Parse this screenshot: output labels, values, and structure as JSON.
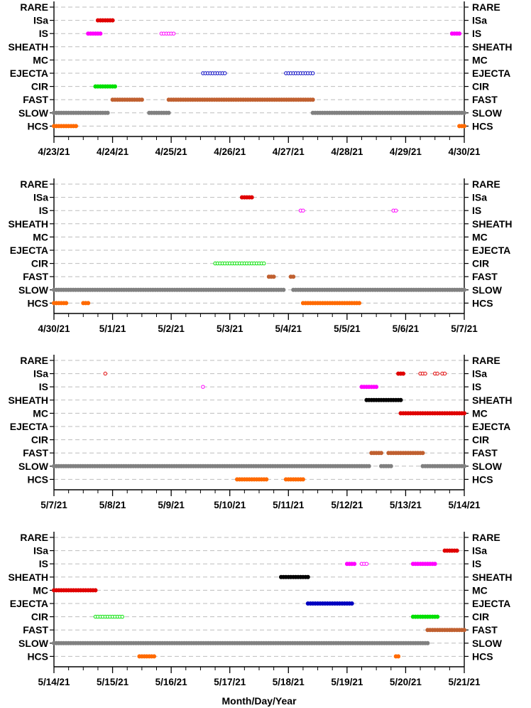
{
  "chart_data": {
    "type": "scatter",
    "xlabel": "Month/Day/Year",
    "categories": [
      "RARE",
      "ISa",
      "IS",
      "SHEATH",
      "MC",
      "EJECTA",
      "CIR",
      "FAST",
      "SLOW",
      "HCS"
    ],
    "colors": {
      "ISa": "#e00000",
      "IS": "#ff00ff",
      "SHEATH": "#000000",
      "MC": "#e00000",
      "EJECTA": "#0000c0",
      "CIR": "#00e000",
      "FAST": "#c06030",
      "SLOW": "#808080",
      "HCS": "#ff6a00"
    },
    "grid": "dashed horizontal lines at each category",
    "panels": [
      {
        "xlim": [
          "2021-04-23",
          "2021-04-30"
        ],
        "ticks": [
          "4/23/21",
          "4/24/21",
          "4/25/21",
          "4/26/21",
          "4/27/21",
          "4/28/21",
          "4/29/21",
          "4/30/21"
        ],
        "segments": [
          {
            "cat": "ISa",
            "from": "2021-04-23 18:00",
            "to": "2021-04-24 00:00",
            "style": "filled"
          },
          {
            "cat": "IS",
            "from": "2021-04-23 14:00",
            "to": "2021-04-23 19:00",
            "style": "filled"
          },
          {
            "cat": "IS",
            "from": "2021-04-24 20:00",
            "to": "2021-04-25 01:00",
            "style": "open"
          },
          {
            "cat": "IS",
            "from": "2021-04-29 19:00",
            "to": "2021-04-29 22:00",
            "style": "filled"
          },
          {
            "cat": "EJECTA",
            "from": "2021-04-25 13:00",
            "to": "2021-04-25 22:00",
            "style": "open"
          },
          {
            "cat": "EJECTA",
            "from": "2021-04-26 23:00",
            "to": "2021-04-27 10:00",
            "style": "open"
          },
          {
            "cat": "CIR",
            "from": "2021-04-23 17:00",
            "to": "2021-04-24 01:00",
            "style": "filled"
          },
          {
            "cat": "FAST",
            "from": "2021-04-24 00:00",
            "to": "2021-04-24 12:00",
            "style": "filled"
          },
          {
            "cat": "FAST",
            "from": "2021-04-24 23:00",
            "to": "2021-04-27 10:00",
            "style": "filled"
          },
          {
            "cat": "SLOW",
            "from": "2021-04-23 00:00",
            "to": "2021-04-23 22:00",
            "style": "filled"
          },
          {
            "cat": "SLOW",
            "from": "2021-04-24 15:00",
            "to": "2021-04-24 23:00",
            "style": "filled"
          },
          {
            "cat": "SLOW",
            "from": "2021-04-27 10:00",
            "to": "2021-04-30 00:00",
            "style": "filled"
          },
          {
            "cat": "HCS",
            "from": "2021-04-23 00:00",
            "to": "2021-04-23 09:00",
            "style": "filled"
          },
          {
            "cat": "HCS",
            "from": "2021-04-29 22:00",
            "to": "2021-04-30 00:00",
            "style": "filled"
          }
        ]
      },
      {
        "xlim": [
          "2021-04-30",
          "2021-05-07"
        ],
        "ticks": [
          "4/30/21",
          "5/1/21",
          "5/2/21",
          "5/3/21",
          "5/4/21",
          "5/5/21",
          "5/6/21",
          "5/7/21"
        ],
        "segments": [
          {
            "cat": "ISa",
            "from": "2021-05-03 05:00",
            "to": "2021-05-03 09:00",
            "style": "filled"
          },
          {
            "cat": "IS",
            "from": "2021-05-04 05:00",
            "to": "2021-05-04 06:00",
            "style": "open"
          },
          {
            "cat": "IS",
            "from": "2021-05-05 19:00",
            "to": "2021-05-05 20:00",
            "style": "open"
          },
          {
            "cat": "CIR",
            "from": "2021-05-02 18:00",
            "to": "2021-05-03 14:00",
            "style": "open"
          },
          {
            "cat": "FAST",
            "from": "2021-05-03 16:00",
            "to": "2021-05-03 18:00",
            "style": "filled"
          },
          {
            "cat": "FAST",
            "from": "2021-05-04 01:00",
            "to": "2021-05-04 02:00",
            "style": "filled"
          },
          {
            "cat": "SLOW",
            "from": "2021-04-30 00:00",
            "to": "2021-05-03 14:00",
            "style": "filled"
          },
          {
            "cat": "SLOW",
            "from": "2021-05-03 15:00",
            "to": "2021-05-03 22:00",
            "style": "filled"
          },
          {
            "cat": "SLOW",
            "from": "2021-05-04 02:00",
            "to": "2021-05-07 00:00",
            "style": "filled"
          },
          {
            "cat": "HCS",
            "from": "2021-04-30 00:00",
            "to": "2021-04-30 05:00",
            "style": "filled"
          },
          {
            "cat": "HCS",
            "from": "2021-04-30 12:00",
            "to": "2021-04-30 14:00",
            "style": "filled"
          },
          {
            "cat": "HCS",
            "from": "2021-05-04 06:00",
            "to": "2021-05-05 05:00",
            "style": "filled"
          }
        ]
      },
      {
        "xlim": [
          "2021-05-07",
          "2021-05-14"
        ],
        "ticks": [
          "5/7/21",
          "5/8/21",
          "5/9/21",
          "5/10/21",
          "5/11/21",
          "5/12/21",
          "5/13/21",
          "5/14/21"
        ],
        "segments": [
          {
            "cat": "ISa",
            "from": "2021-05-07 21:00",
            "to": "2021-05-07 21:00",
            "style": "open"
          },
          {
            "cat": "ISa",
            "from": "2021-05-12 21:00",
            "to": "2021-05-12 23:00",
            "style": "filled"
          },
          {
            "cat": "ISa",
            "from": "2021-05-13 06:00",
            "to": "2021-05-13 08:00",
            "style": "open"
          },
          {
            "cat": "ISa",
            "from": "2021-05-13 12:00",
            "to": "2021-05-13 13:00",
            "style": "open"
          },
          {
            "cat": "ISa",
            "from": "2021-05-13 15:00",
            "to": "2021-05-13 16:00",
            "style": "open"
          },
          {
            "cat": "IS",
            "from": "2021-05-09 13:00",
            "to": "2021-05-09 13:00",
            "style": "open"
          },
          {
            "cat": "IS",
            "from": "2021-05-12 06:00",
            "to": "2021-05-12 12:00",
            "style": "filled"
          },
          {
            "cat": "SHEATH",
            "from": "2021-05-12 08:00",
            "to": "2021-05-12 22:00",
            "style": "filled"
          },
          {
            "cat": "MC",
            "from": "2021-05-12 22:00",
            "to": "2021-05-14 00:00",
            "style": "filled"
          },
          {
            "cat": "FAST",
            "from": "2021-05-12 10:00",
            "to": "2021-05-12 14:00",
            "style": "filled"
          },
          {
            "cat": "FAST",
            "from": "2021-05-12 17:00",
            "to": "2021-05-13 07:00",
            "style": "filled"
          },
          {
            "cat": "SLOW",
            "from": "2021-05-07 00:00",
            "to": "2021-05-12 09:00",
            "style": "filled"
          },
          {
            "cat": "SLOW",
            "from": "2021-05-12 14:00",
            "to": "2021-05-12 18:00",
            "style": "filled"
          },
          {
            "cat": "SLOW",
            "from": "2021-05-13 07:00",
            "to": "2021-05-14 00:00",
            "style": "filled"
          },
          {
            "cat": "HCS",
            "from": "2021-05-10 03:00",
            "to": "2021-05-10 15:00",
            "style": "filled"
          },
          {
            "cat": "HCS",
            "from": "2021-05-10 23:00",
            "to": "2021-05-11 06:00",
            "style": "filled"
          }
        ]
      },
      {
        "xlim": [
          "2021-05-14",
          "2021-05-21"
        ],
        "ticks": [
          "5/14/21",
          "5/15/21",
          "5/16/21",
          "5/17/21",
          "5/18/21",
          "5/19/21",
          "5/20/21",
          "5/21/21"
        ],
        "segments": [
          {
            "cat": "ISa",
            "from": "2021-05-20 16:00",
            "to": "2021-05-20 21:00",
            "style": "filled"
          },
          {
            "cat": "IS",
            "from": "2021-05-19 00:00",
            "to": "2021-05-19 03:00",
            "style": "filled"
          },
          {
            "cat": "IS",
            "from": "2021-05-19 06:00",
            "to": "2021-05-19 08:00",
            "style": "open"
          },
          {
            "cat": "IS",
            "from": "2021-05-20 03:00",
            "to": "2021-05-20 12:00",
            "style": "filled"
          },
          {
            "cat": "SHEATH",
            "from": "2021-05-17 21:00",
            "to": "2021-05-18 08:00",
            "style": "filled"
          },
          {
            "cat": "MC",
            "from": "2021-05-14 00:00",
            "to": "2021-05-14 17:00",
            "style": "filled"
          },
          {
            "cat": "EJECTA",
            "from": "2021-05-18 08:00",
            "to": "2021-05-19 02:00",
            "style": "filled"
          },
          {
            "cat": "CIR",
            "from": "2021-05-14 17:00",
            "to": "2021-05-15 04:00",
            "style": "open"
          },
          {
            "cat": "CIR",
            "from": "2021-05-20 03:00",
            "to": "2021-05-20 13:00",
            "style": "filled"
          },
          {
            "cat": "FAST",
            "from": "2021-05-20 09:00",
            "to": "2021-05-21 00:00",
            "style": "filled"
          },
          {
            "cat": "SLOW",
            "from": "2021-05-14 00:00",
            "to": "2021-05-20 09:00",
            "style": "filled"
          },
          {
            "cat": "HCS",
            "from": "2021-05-15 11:00",
            "to": "2021-05-15 17:00",
            "style": "filled"
          },
          {
            "cat": "HCS",
            "from": "2021-05-19 20:00",
            "to": "2021-05-19 21:00",
            "style": "filled"
          }
        ]
      }
    ]
  }
}
